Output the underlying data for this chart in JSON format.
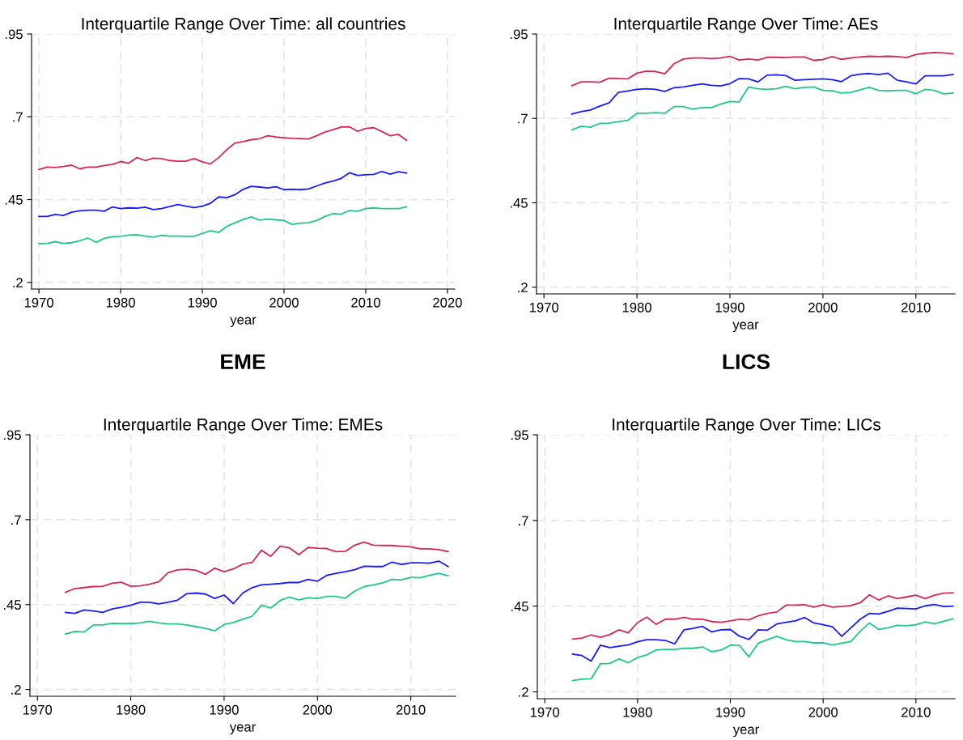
{
  "chart_data": [
    {
      "type": "line",
      "title": "Interquartile Range Over Time: all countries",
      "xlabel": "year",
      "grid": true,
      "x": [
        1970,
        1971,
        1972,
        1973,
        1974,
        1975,
        1976,
        1977,
        1978,
        1979,
        1980,
        1981,
        1982,
        1983,
        1984,
        1985,
        1986,
        1987,
        1988,
        1989,
        1990,
        1991,
        1992,
        1993,
        1994,
        1995,
        1996,
        1997,
        1998,
        1999,
        2000,
        2001,
        2002,
        2003,
        2004,
        2005,
        2006,
        2007,
        2008,
        2009,
        2010,
        2011,
        2012,
        2013,
        2014,
        2015
      ],
      "xlim": [
        1969.1,
        2020.9
      ],
      "xticks": [
        1970,
        1980,
        1990,
        2000,
        2010,
        2020
      ],
      "ylim": [
        0.18,
        0.95
      ],
      "yticks": [
        {
          "value": 0.2,
          "label": ".2"
        },
        {
          "value": 0.45,
          "label": ".45"
        },
        {
          "value": 0.7,
          "label": ".7"
        },
        {
          "value": 0.95,
          "label": ".95"
        }
      ],
      "series": [
        {
          "color": "#d6275b",
          "values": [
            0.541,
            0.548,
            0.547,
            0.55,
            0.554,
            0.543,
            0.548,
            0.548,
            0.553,
            0.556,
            0.565,
            0.56,
            0.577,
            0.568,
            0.575,
            0.574,
            0.568,
            0.566,
            0.566,
            0.574,
            0.564,
            0.558,
            0.577,
            0.601,
            0.621,
            0.625,
            0.631,
            0.634,
            0.643,
            0.639,
            0.637,
            0.635,
            0.634,
            0.633,
            0.643,
            0.654,
            0.661,
            0.669,
            0.67,
            0.656,
            0.665,
            0.667,
            0.655,
            0.643,
            0.647,
            0.629
          ]
        },
        {
          "color": "#1a1aff",
          "values": [
            0.399,
            0.399,
            0.405,
            0.402,
            0.412,
            0.416,
            0.418,
            0.418,
            0.415,
            0.428,
            0.423,
            0.425,
            0.424,
            0.427,
            0.42,
            0.423,
            0.429,
            0.435,
            0.43,
            0.426,
            0.43,
            0.439,
            0.458,
            0.456,
            0.465,
            0.481,
            0.49,
            0.488,
            0.485,
            0.489,
            0.48,
            0.481,
            0.48,
            0.482,
            0.491,
            0.5,
            0.506,
            0.514,
            0.531,
            0.523,
            0.525,
            0.526,
            0.535,
            0.527,
            0.534,
            0.53
          ]
        },
        {
          "color": "#1fc98a",
          "values": [
            0.317,
            0.318,
            0.323,
            0.318,
            0.32,
            0.326,
            0.334,
            0.321,
            0.333,
            0.338,
            0.339,
            0.343,
            0.344,
            0.34,
            0.337,
            0.342,
            0.34,
            0.34,
            0.339,
            0.339,
            0.348,
            0.356,
            0.351,
            0.369,
            0.38,
            0.39,
            0.398,
            0.388,
            0.391,
            0.389,
            0.387,
            0.375,
            0.379,
            0.38,
            0.387,
            0.399,
            0.408,
            0.406,
            0.417,
            0.415,
            0.423,
            0.425,
            0.423,
            0.423,
            0.423,
            0.428
          ]
        }
      ]
    },
    {
      "type": "line",
      "title": "Interquartile Range Over Time: AEs",
      "xlabel": "year",
      "grid": true,
      "x": [
        1973,
        1974,
        1975,
        1976,
        1977,
        1978,
        1979,
        1980,
        1981,
        1982,
        1983,
        1984,
        1985,
        1986,
        1987,
        1988,
        1989,
        1990,
        1991,
        1992,
        1993,
        1994,
        1995,
        1996,
        1997,
        1998,
        1999,
        2000,
        2001,
        2002,
        2003,
        2004,
        2005,
        2006,
        2007,
        2008,
        2009,
        2010,
        2011,
        2012,
        2013,
        2014
      ],
      "xlim": [
        1969.2,
        2014.2
      ],
      "xticks": [
        1970,
        1980,
        1990,
        2000,
        2010
      ],
      "ylim": [
        0.18,
        0.95
      ],
      "yticks": [
        {
          "value": 0.2,
          "label": ".2"
        },
        {
          "value": 0.45,
          "label": ".45"
        },
        {
          "value": 0.7,
          "label": ".7"
        },
        {
          "value": 0.95,
          "label": ".95"
        }
      ],
      "series": [
        {
          "color": "#d6275b",
          "values": [
            0.797,
            0.808,
            0.808,
            0.807,
            0.819,
            0.818,
            0.817,
            0.834,
            0.84,
            0.839,
            0.832,
            0.862,
            0.876,
            0.879,
            0.879,
            0.877,
            0.879,
            0.884,
            0.873,
            0.876,
            0.873,
            0.881,
            0.881,
            0.88,
            0.882,
            0.882,
            0.872,
            0.874,
            0.883,
            0.875,
            0.879,
            0.882,
            0.884,
            0.883,
            0.884,
            0.883,
            0.88,
            0.889,
            0.893,
            0.895,
            0.894,
            0.891
          ]
        },
        {
          "color": "#1a1aff",
          "values": [
            0.713,
            0.72,
            0.725,
            0.736,
            0.746,
            0.777,
            0.781,
            0.786,
            0.788,
            0.786,
            0.78,
            0.791,
            0.793,
            0.798,
            0.802,
            0.798,
            0.796,
            0.803,
            0.818,
            0.817,
            0.808,
            0.828,
            0.829,
            0.827,
            0.813,
            0.815,
            0.816,
            0.817,
            0.815,
            0.809,
            0.826,
            0.831,
            0.833,
            0.83,
            0.834,
            0.813,
            0.808,
            0.802,
            0.826,
            0.826,
            0.826,
            0.83
          ]
        },
        {
          "color": "#1fc98a",
          "values": [
            0.666,
            0.677,
            0.674,
            0.685,
            0.686,
            0.69,
            0.694,
            0.715,
            0.715,
            0.717,
            0.715,
            0.735,
            0.735,
            0.727,
            0.732,
            0.732,
            0.742,
            0.75,
            0.749,
            0.793,
            0.788,
            0.786,
            0.788,
            0.795,
            0.788,
            0.792,
            0.793,
            0.783,
            0.782,
            0.775,
            0.777,
            0.785,
            0.792,
            0.783,
            0.782,
            0.783,
            0.783,
            0.773,
            0.786,
            0.783,
            0.773,
            0.775
          ]
        }
      ]
    },
    {
      "type": "line",
      "subtitle": "EME",
      "title": "Interquartile Range Over Time: EMEs",
      "xlabel": "year",
      "grid": true,
      "x": [
        1973,
        1974,
        1975,
        1976,
        1977,
        1978,
        1979,
        1980,
        1981,
        1982,
        1983,
        1984,
        1985,
        1986,
        1987,
        1988,
        1989,
        1990,
        1991,
        1992,
        1993,
        1994,
        1995,
        1996,
        1997,
        1998,
        1999,
        2000,
        2001,
        2002,
        2003,
        2004,
        2005,
        2006,
        2007,
        2008,
        2009,
        2010,
        2011,
        2012,
        2013,
        2014
      ],
      "xlim": [
        1969.2,
        2014.8
      ],
      "xticks": [
        1970,
        1980,
        1990,
        2000,
        2010
      ],
      "ylim": [
        0.18,
        0.95
      ],
      "yticks": [
        {
          "value": 0.2,
          "label": ".2"
        },
        {
          "value": 0.45,
          "label": ".45"
        },
        {
          "value": 0.7,
          "label": ".7"
        },
        {
          "value": 0.95,
          "label": ".95"
        }
      ],
      "series": [
        {
          "color": "#d6275b",
          "values": [
            0.486,
            0.497,
            0.5,
            0.503,
            0.504,
            0.513,
            0.516,
            0.504,
            0.505,
            0.51,
            0.517,
            0.544,
            0.552,
            0.554,
            0.551,
            0.539,
            0.557,
            0.547,
            0.555,
            0.569,
            0.574,
            0.61,
            0.592,
            0.622,
            0.617,
            0.597,
            0.618,
            0.616,
            0.615,
            0.606,
            0.607,
            0.625,
            0.634,
            0.625,
            0.624,
            0.624,
            0.622,
            0.62,
            0.614,
            0.614,
            0.612,
            0.606
          ]
        },
        {
          "color": "#1a1aff",
          "values": [
            0.427,
            0.424,
            0.434,
            0.431,
            0.427,
            0.437,
            0.442,
            0.448,
            0.457,
            0.457,
            0.452,
            0.457,
            0.463,
            0.482,
            0.484,
            0.481,
            0.468,
            0.478,
            0.453,
            0.484,
            0.5,
            0.508,
            0.51,
            0.512,
            0.515,
            0.515,
            0.524,
            0.519,
            0.536,
            0.542,
            0.547,
            0.553,
            0.563,
            0.562,
            0.562,
            0.575,
            0.568,
            0.573,
            0.573,
            0.572,
            0.578,
            0.562
          ]
        },
        {
          "color": "#1fc98a",
          "values": [
            0.363,
            0.371,
            0.369,
            0.39,
            0.39,
            0.395,
            0.394,
            0.394,
            0.396,
            0.401,
            0.396,
            0.393,
            0.393,
            0.39,
            0.385,
            0.38,
            0.373,
            0.391,
            0.397,
            0.407,
            0.416,
            0.448,
            0.44,
            0.462,
            0.472,
            0.464,
            0.47,
            0.468,
            0.474,
            0.474,
            0.469,
            0.49,
            0.503,
            0.508,
            0.514,
            0.524,
            0.523,
            0.53,
            0.529,
            0.536,
            0.542,
            0.535
          ]
        }
      ]
    },
    {
      "type": "line",
      "subtitle": "LICS",
      "title": "Interquartile Range Over Time: LICs",
      "xlabel": "year",
      "grid": true,
      "x": [
        1973,
        1974,
        1975,
        1976,
        1977,
        1978,
        1979,
        1980,
        1981,
        1982,
        1983,
        1984,
        1985,
        1986,
        1987,
        1988,
        1989,
        1990,
        1991,
        1992,
        1993,
        1994,
        1995,
        1996,
        1997,
        1998,
        1999,
        2000,
        2001,
        2002,
        2003,
        2004,
        2005,
        2006,
        2007,
        2008,
        2009,
        2010,
        2011,
        2012,
        2013,
        2014
      ],
      "xlim": [
        1969.2,
        2014.2
      ],
      "xticks": [
        1970,
        1980,
        1990,
        2000,
        2010
      ],
      "ylim": [
        0.18,
        0.95
      ],
      "yticks": [
        {
          "value": 0.2,
          "label": ".2"
        },
        {
          "value": 0.45,
          "label": ".45"
        },
        {
          "value": 0.7,
          "label": ".7"
        },
        {
          "value": 0.95,
          "label": ".95"
        }
      ],
      "series": [
        {
          "color": "#d6275b",
          "values": [
            0.354,
            0.357,
            0.366,
            0.359,
            0.367,
            0.381,
            0.372,
            0.402,
            0.418,
            0.397,
            0.412,
            0.412,
            0.417,
            0.412,
            0.412,
            0.405,
            0.403,
            0.407,
            0.412,
            0.41,
            0.422,
            0.429,
            0.433,
            0.453,
            0.453,
            0.454,
            0.447,
            0.454,
            0.447,
            0.449,
            0.452,
            0.46,
            0.483,
            0.468,
            0.48,
            0.472,
            0.477,
            0.482,
            0.472,
            0.482,
            0.488,
            0.489
          ]
        },
        {
          "color": "#1a1aff",
          "values": [
            0.31,
            0.306,
            0.29,
            0.336,
            0.329,
            0.333,
            0.337,
            0.346,
            0.352,
            0.352,
            0.35,
            0.34,
            0.381,
            0.385,
            0.391,
            0.375,
            0.381,
            0.382,
            0.362,
            0.353,
            0.381,
            0.38,
            0.398,
            0.403,
            0.407,
            0.417,
            0.401,
            0.396,
            0.39,
            0.362,
            0.387,
            0.412,
            0.429,
            0.427,
            0.435,
            0.444,
            0.443,
            0.442,
            0.451,
            0.455,
            0.449,
            0.45
          ]
        },
        {
          "color": "#1fc98a",
          "values": [
            0.233,
            0.237,
            0.238,
            0.282,
            0.283,
            0.296,
            0.285,
            0.3,
            0.308,
            0.322,
            0.324,
            0.324,
            0.327,
            0.327,
            0.331,
            0.317,
            0.322,
            0.336,
            0.335,
            0.302,
            0.342,
            0.352,
            0.362,
            0.352,
            0.347,
            0.347,
            0.343,
            0.343,
            0.337,
            0.342,
            0.347,
            0.377,
            0.401,
            0.382,
            0.387,
            0.394,
            0.393,
            0.396,
            0.404,
            0.399,
            0.406,
            0.413
          ]
        }
      ]
    }
  ]
}
